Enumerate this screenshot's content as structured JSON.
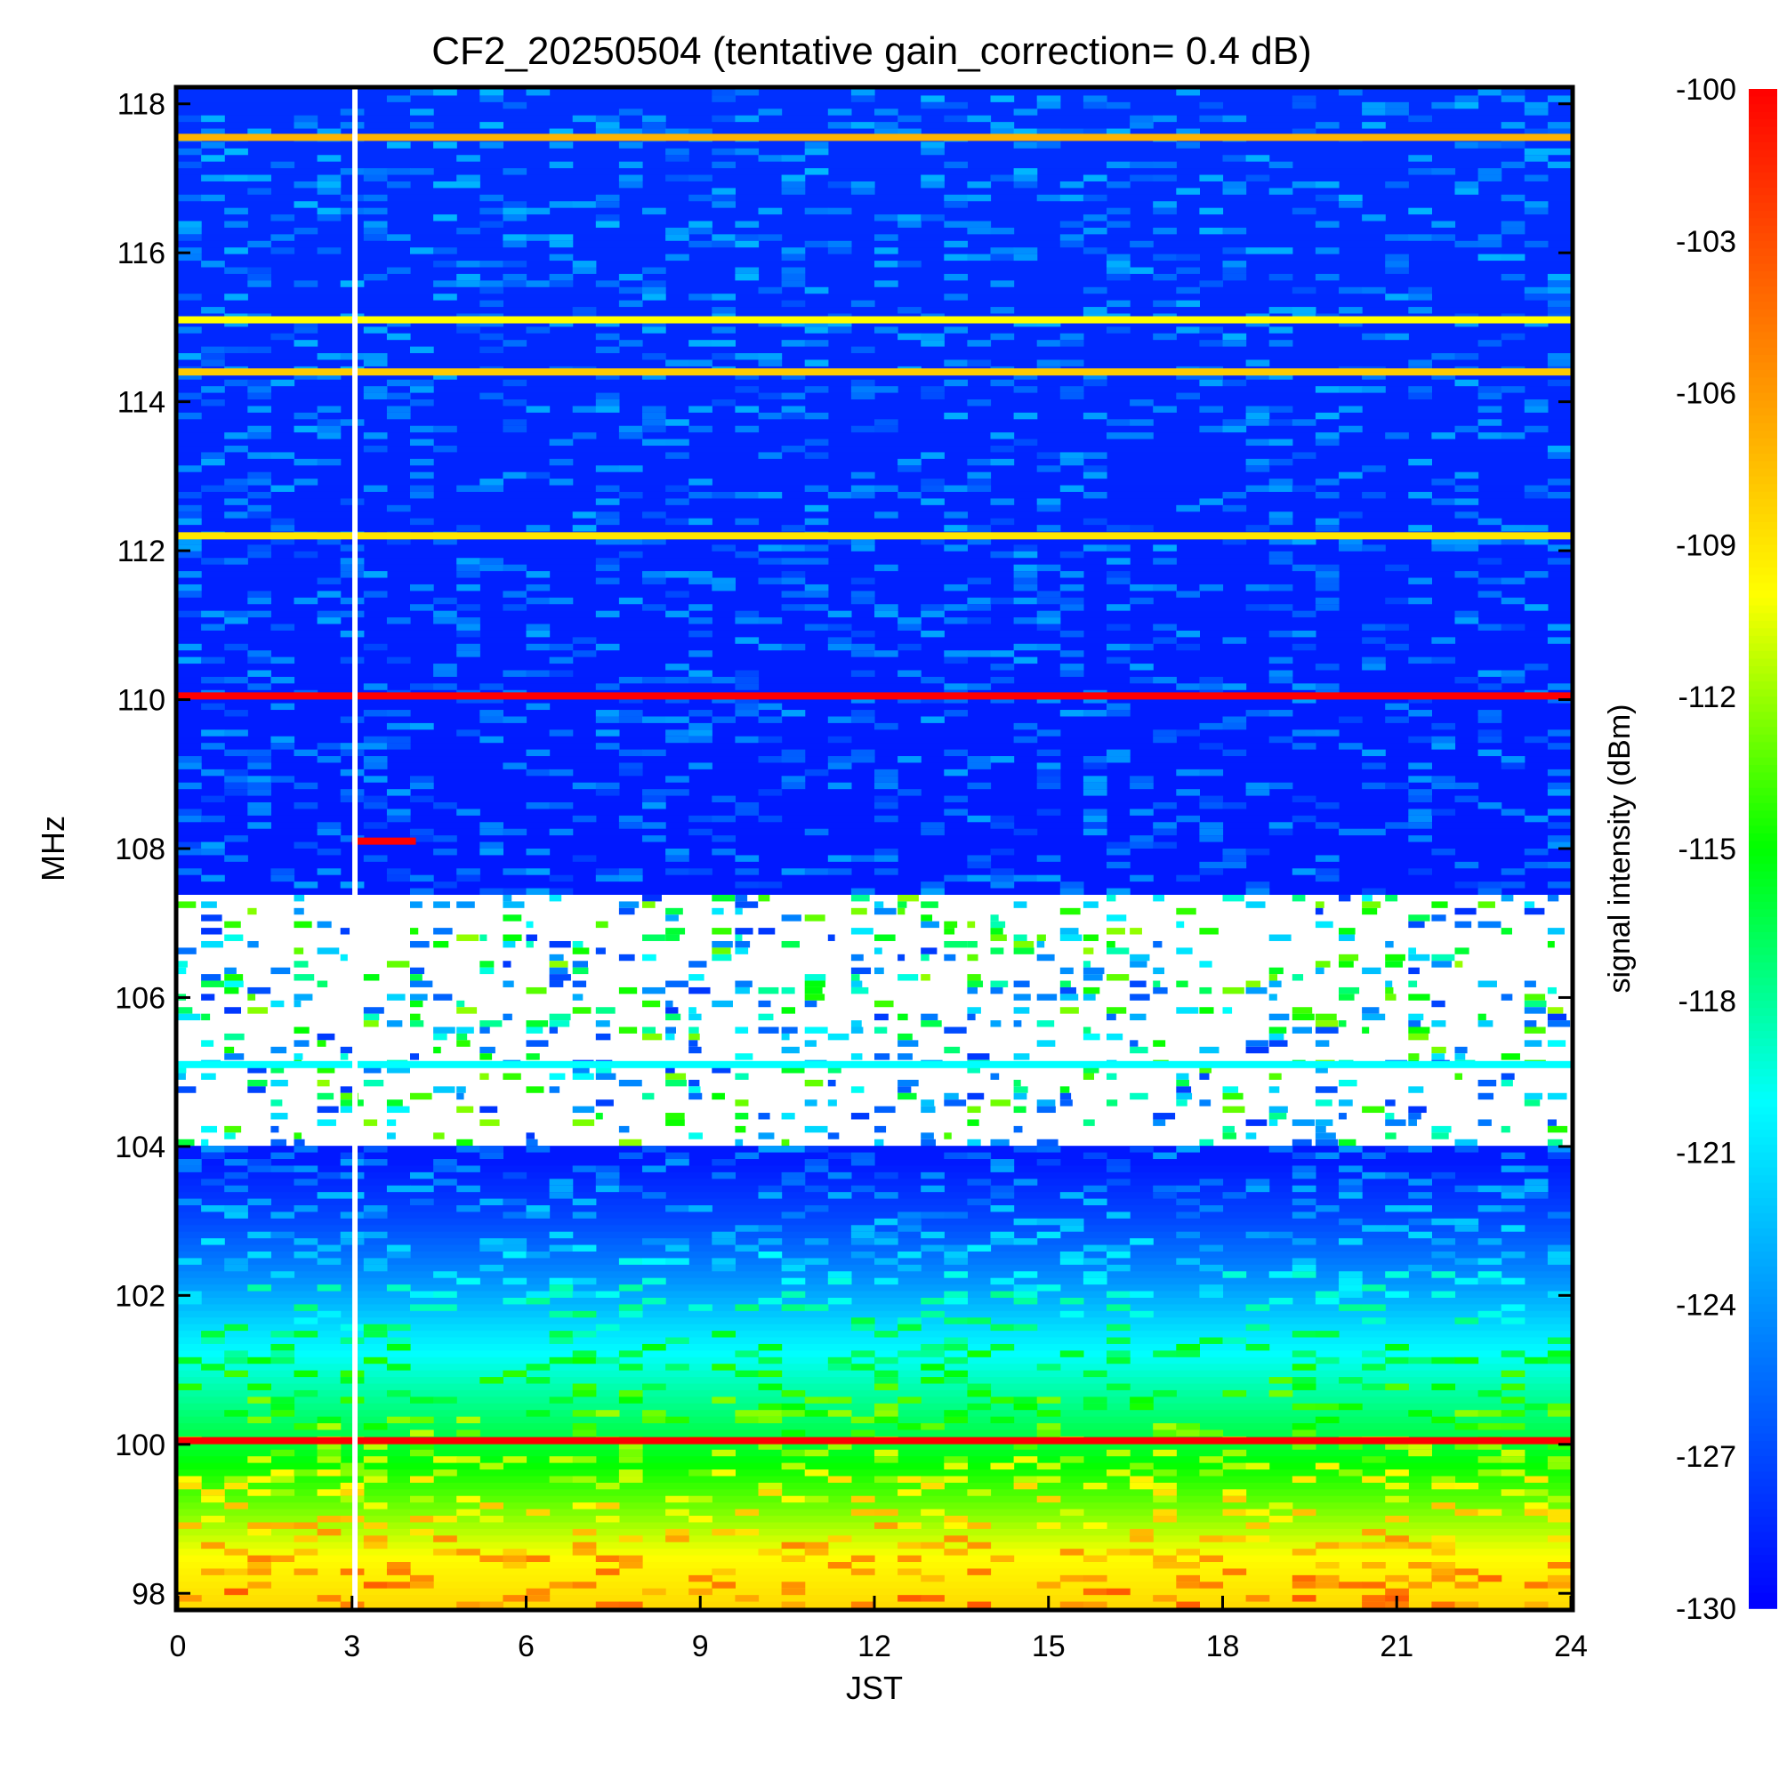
{
  "chart_data": {
    "type": "heatmap",
    "title": "CF2_20250504 (tentative gain_correction=  0.4 dB)",
    "xlabel": "JST",
    "ylabel": "MHz",
    "xlim": [
      0,
      24
    ],
    "ylim": [
      97.8,
      118.2
    ],
    "x_ticks": [
      "0",
      "3",
      "6",
      "9",
      "12",
      "15",
      "18",
      "21",
      "24"
    ],
    "y_ticks": [
      "98",
      "100",
      "102",
      "104",
      "106",
      "108",
      "110",
      "112",
      "114",
      "116",
      "118"
    ],
    "colorbar": {
      "label": "signal intensity (dBm)",
      "range": [
        -130,
        -100
      ],
      "ticks": [
        "-100",
        "-103",
        "-106",
        "-109",
        "-112",
        "-115",
        "-118",
        "-121",
        "-124",
        "-127",
        "-130"
      ],
      "colors": [
        "#0000ff",
        "#0078ff",
        "#00ffff",
        "#00ff00",
        "#ffff00",
        "#ff8000",
        "#ff0000"
      ]
    },
    "background_by_freq": [
      {
        "mhz": 97.8,
        "dbm": -108.5
      },
      {
        "mhz": 98.5,
        "dbm": -110
      },
      {
        "mhz": 99.2,
        "dbm": -113
      },
      {
        "mhz": 100,
        "dbm": -116
      },
      {
        "mhz": 100.8,
        "dbm": -118.5
      },
      {
        "mhz": 101.5,
        "dbm": -121
      },
      {
        "mhz": 102.2,
        "dbm": -124
      },
      {
        "mhz": 103,
        "dbm": -127
      },
      {
        "mhz": 103.8,
        "dbm": -129
      },
      {
        "mhz": 108,
        "dbm": -129
      },
      {
        "mhz": 118.2,
        "dbm": -128
      }
    ],
    "persistent_lines": [
      {
        "mhz": 117.55,
        "dbm": -107,
        "from": 0,
        "to": 24
      },
      {
        "mhz": 115.1,
        "dbm": -110,
        "from": 0,
        "to": 24
      },
      {
        "mhz": 114.4,
        "dbm": -108,
        "from": 0,
        "to": 24
      },
      {
        "mhz": 112.2,
        "dbm": -109,
        "from": 0,
        "to": 24
      },
      {
        "mhz": 110.05,
        "dbm": -100,
        "from": 0,
        "to": 24
      },
      {
        "mhz": 108.1,
        "dbm": -100,
        "from": 3,
        "to": 4.1
      },
      {
        "mhz": 105.1,
        "dbm": -120,
        "from": 0,
        "to": 24
      },
      {
        "mhz": 100.05,
        "dbm": -100,
        "from": 0,
        "to": 24
      }
    ],
    "gaps": [
      {
        "from_mhz": 104.0,
        "to_mhz": 107.4,
        "description": "masked FM band"
      },
      {
        "x": 3.05
      }
    ]
  }
}
